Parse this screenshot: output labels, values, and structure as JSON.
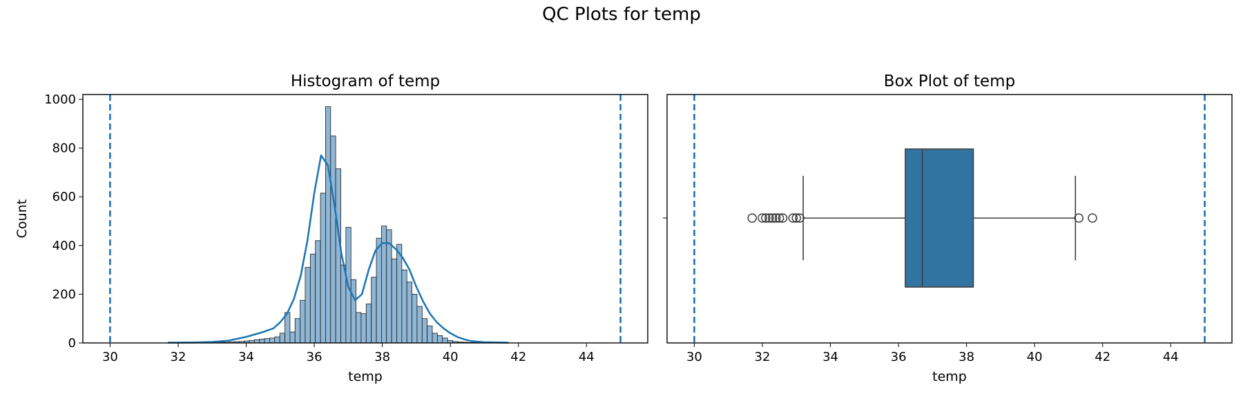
{
  "figure_title": "QC Plots for temp",
  "colors": {
    "hist_fill": "#8fb6d5",
    "hist_edge": "#1a1a1a",
    "kde_line": "#1f77b4",
    "box_fill": "#3274a1",
    "threshold_line": "#1f6fb2",
    "axes": "#000000"
  },
  "chart_data": [
    {
      "type": "bar",
      "subtype": "histogram",
      "title": "Histogram of temp",
      "xlabel": "temp",
      "ylabel": "Count",
      "xlim": [
        29.2,
        45.8
      ],
      "ylim": [
        0,
        1020
      ],
      "xticks": [
        30,
        32,
        34,
        36,
        38,
        40,
        42,
        44
      ],
      "yticks": [
        0,
        200,
        400,
        600,
        800,
        1000
      ],
      "grid": false,
      "bin_start": 31.7,
      "bin_width": 0.1494,
      "counts": [
        1,
        1,
        1,
        1,
        1,
        1,
        1,
        2,
        2,
        2,
        3,
        3,
        4,
        5,
        6,
        8,
        10,
        13,
        16,
        18,
        20,
        25,
        40,
        125,
        45,
        100,
        175,
        310,
        365,
        420,
        615,
        970,
        850,
        715,
        320,
        475,
        260,
        125,
        120,
        160,
        270,
        430,
        480,
        465,
        345,
        405,
        300,
        250,
        200,
        150,
        100,
        70,
        40,
        30,
        20,
        10,
        6,
        4,
        3,
        2,
        2,
        1,
        1,
        1,
        1,
        1,
        1
      ],
      "kde": {
        "x": [
          31.7,
          32.5,
          33,
          33.5,
          34,
          34.5,
          34.8,
          35,
          35.2,
          35.4,
          35.6,
          35.8,
          36,
          36.2,
          36.4,
          36.6,
          36.8,
          37,
          37.2,
          37.4,
          37.6,
          37.8,
          38,
          38.2,
          38.4,
          38.6,
          38.8,
          39,
          39.2,
          39.4,
          39.6,
          39.8,
          40,
          40.2,
          40.4,
          40.6,
          40.8,
          41,
          41.7
        ],
        "y": [
          1,
          2,
          4,
          10,
          25,
          45,
          60,
          85,
          120,
          180,
          275,
          420,
          615,
          770,
          730,
          560,
          365,
          230,
          175,
          200,
          300,
          380,
          410,
          410,
          385,
          350,
          300,
          230,
          170,
          120,
          85,
          60,
          40,
          25,
          15,
          8,
          5,
          3,
          1
        ]
      },
      "reference_lines": [
        30,
        45
      ]
    },
    {
      "type": "box",
      "title": "Box Plot of temp",
      "xlabel": "temp",
      "xlim": [
        29.2,
        45.8
      ],
      "xticks": [
        30,
        32,
        34,
        36,
        38,
        40,
        42,
        44
      ],
      "grid": false,
      "box": {
        "whisker_low": 33.2,
        "q1": 36.2,
        "median": 36.7,
        "q3": 38.2,
        "whisker_high": 41.2
      },
      "outliers": [
        31.7,
        32.0,
        32.1,
        32.2,
        32.3,
        32.4,
        32.5,
        32.6,
        32.9,
        33.0,
        33.1,
        41.3,
        41.7
      ],
      "reference_lines": [
        30,
        45
      ]
    }
  ]
}
